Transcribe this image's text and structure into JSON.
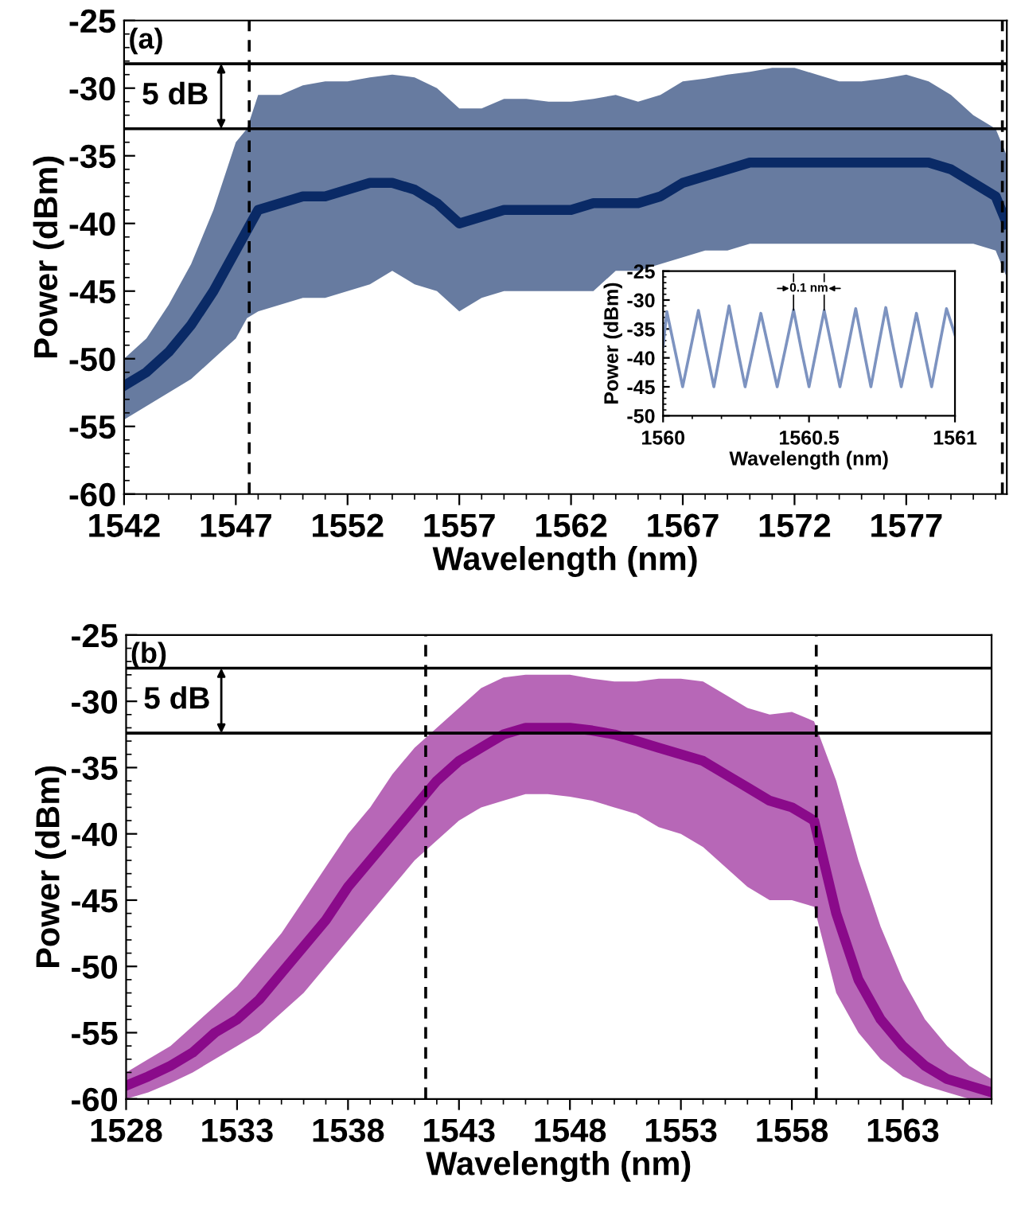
{
  "chart_data": [
    {
      "type": "line",
      "xlabel": "Wavelength (nm)",
      "ylabel": "Power (dBm)",
      "xlim": [
        1542,
        1581.5
      ],
      "ylim": [
        -60,
        -25
      ],
      "xticks": [
        1542,
        1547,
        1552,
        1557,
        1562,
        1567,
        1572,
        1577
      ],
      "yticks": [
        -25,
        -30,
        -35,
        -40,
        -45,
        -50,
        -55,
        -60
      ],
      "grid": false,
      "legend": false,
      "series": [
        {
          "color": "#0a2a66",
          "x": [
            1542,
            1543,
            1544,
            1545,
            1546,
            1547,
            1547.5,
            1548,
            1549,
            1550,
            1551,
            1552,
            1553,
            1554,
            1555,
            1556,
            1557,
            1558,
            1559,
            1560,
            1561,
            1562,
            1563,
            1564,
            1565,
            1566,
            1567,
            1568,
            1569,
            1570,
            1571,
            1572,
            1573,
            1574,
            1575,
            1576,
            1577,
            1578,
            1579,
            1580,
            1581,
            1581.5
          ],
          "values": [
            -52,
            -51,
            -49.5,
            -47.5,
            -45,
            -42,
            -40.5,
            -39,
            -38.5,
            -38,
            -38,
            -37.5,
            -37,
            -37,
            -37.5,
            -38.5,
            -40,
            -39.5,
            -39,
            -39,
            -39,
            -39,
            -38.5,
            -38.5,
            -38.5,
            -38,
            -37,
            -36.5,
            -36,
            -35.5,
            -35.5,
            -35.5,
            -35.5,
            -35.5,
            -35.5,
            -35.5,
            -35.5,
            -35.5,
            -36,
            -37,
            -38,
            -40
          ],
          "upper": [
            -50,
            -48.5,
            -46,
            -43,
            -39,
            -34,
            -33,
            -30.5,
            -30.5,
            -29.8,
            -29.5,
            -29.5,
            -29.2,
            -29,
            -29.2,
            -30,
            -31.5,
            -31.5,
            -30.8,
            -30.8,
            -31,
            -31,
            -30.8,
            -30.5,
            -31,
            -30.5,
            -29.5,
            -29.3,
            -29,
            -28.8,
            -28.5,
            -28.5,
            -29,
            -29.5,
            -29.5,
            -29.3,
            -29,
            -29.5,
            -30.5,
            -32,
            -33,
            -35
          ],
          "lower": [
            -54.5,
            -53.5,
            -52.5,
            -51.5,
            -50,
            -48.5,
            -47,
            -46.5,
            -46,
            -45.5,
            -45.5,
            -45,
            -44.5,
            -43.5,
            -44.5,
            -45,
            -46.5,
            -45.5,
            -45,
            -45,
            -45,
            -45,
            -45,
            -43.5,
            -43.5,
            -43,
            -42.5,
            -42,
            -42,
            -41.5,
            -41.5,
            -41.5,
            -41.5,
            -41.5,
            -41.5,
            -41.5,
            -41.5,
            -41.5,
            -41.5,
            -41.5,
            -42,
            -44
          ]
        }
      ],
      "ref_lines": [
        {
          "axis": "x",
          "value": 1547.6,
          "line_style": "dashed",
          "color": "#000000"
        },
        {
          "axis": "x",
          "value": 1581.3,
          "line_style": "dashed",
          "color": "#000000"
        },
        {
          "axis": "y",
          "value": -28.2,
          "line_style": "solid",
          "color": "#000000"
        },
        {
          "axis": "y",
          "value": -33,
          "line_style": "solid",
          "color": "#000000"
        }
      ],
      "annotations": [
        "(a)",
        "5 dB"
      ]
    },
    {
      "type": "line",
      "xlabel": "Wavelength (nm)",
      "ylabel": "Power (dBm)",
      "xlim": [
        1560,
        1561
      ],
      "ylim": [
        -50,
        -25
      ],
      "xticks": [
        1560,
        1560.5,
        1561
      ],
      "yticks": [
        -25,
        -30,
        -35,
        -40,
        -45,
        -50
      ],
      "grid": false,
      "legend": false,
      "series": [
        {
          "color": "#7d93c0",
          "x": [
            1560,
            1560.013,
            1560.04,
            1560.067,
            1560.094,
            1560.121,
            1560.147,
            1560.174,
            1560.2,
            1560.226,
            1560.253,
            1560.281,
            1560.308,
            1560.335,
            1560.363,
            1560.391,
            1560.419,
            1560.447,
            1560.473,
            1560.5,
            1560.526,
            1560.552,
            1560.579,
            1560.606,
            1560.633,
            1560.66,
            1560.686,
            1560.712,
            1560.737,
            1560.763,
            1560.789,
            1560.816,
            1560.842,
            1560.868,
            1560.894,
            1560.92,
            1560.945,
            1560.971,
            1561
          ],
          "values": [
            -38,
            -32,
            -38.5,
            -45,
            -38.4,
            -31.8,
            -38.4,
            -45,
            -38,
            -31,
            -38,
            -45,
            -38.7,
            -32.3,
            -38.7,
            -45,
            -38.4,
            -31.7,
            -38.4,
            -45,
            -38.4,
            -31.8,
            -38.4,
            -45,
            -38.3,
            -31.5,
            -38.3,
            -45,
            -38.2,
            -31.3,
            -38.2,
            -45,
            -38.7,
            -32.3,
            -38.7,
            -45,
            -38.3,
            -31.5,
            -36
          ]
        }
      ],
      "annotations": [
        "0.1 nm"
      ]
    },
    {
      "type": "line",
      "xlabel": "Wavelength (nm)",
      "ylabel": "Power (dBm)",
      "xlim": [
        1528,
        1567
      ],
      "ylim": [
        -60,
        -25
      ],
      "xticks": [
        1528,
        1533,
        1538,
        1543,
        1548,
        1553,
        1558,
        1563
      ],
      "yticks": [
        -25,
        -30,
        -35,
        -40,
        -45,
        -50,
        -55,
        -60
      ],
      "grid": false,
      "legend": false,
      "series": [
        {
          "color": "#8a0a8a",
          "x": [
            1528,
            1529,
            1530,
            1531,
            1532,
            1533,
            1534,
            1535,
            1536,
            1537,
            1538,
            1539,
            1540,
            1541,
            1542,
            1543,
            1544,
            1545,
            1546,
            1547,
            1548,
            1549,
            1550,
            1551,
            1552,
            1553,
            1554,
            1555,
            1556,
            1557,
            1558,
            1559,
            1560,
            1561,
            1562,
            1563,
            1564,
            1565,
            1566,
            1567
          ],
          "values": [
            -59,
            -58.3,
            -57.5,
            -56.5,
            -55,
            -54,
            -52.5,
            -50.5,
            -48.5,
            -46.5,
            -44,
            -42,
            -40,
            -38,
            -36,
            -34.5,
            -33.5,
            -32.5,
            -32,
            -32,
            -32,
            -32.2,
            -32.5,
            -33,
            -33.5,
            -34,
            -34.5,
            -35.5,
            -36.5,
            -37.5,
            -38,
            -39,
            -46,
            -51,
            -54,
            -56,
            -57.5,
            -58.5,
            -59,
            -59.5
          ],
          "upper": [
            -58,
            -57,
            -56,
            -54.5,
            -53,
            -51.5,
            -49.5,
            -47.5,
            -45,
            -42.5,
            -40,
            -38,
            -35.5,
            -33.5,
            -32,
            -30.5,
            -29,
            -28.2,
            -28,
            -28,
            -28,
            -28.3,
            -28.5,
            -28.5,
            -28.3,
            -28.3,
            -28.5,
            -29.5,
            -30.5,
            -31,
            -30.8,
            -31.5,
            -36,
            -42,
            -47,
            -51,
            -54,
            -56,
            -57.5,
            -58.5
          ],
          "lower": [
            -60,
            -59.5,
            -58.8,
            -58,
            -57,
            -56,
            -55,
            -53.5,
            -52,
            -50,
            -48,
            -46,
            -44,
            -42,
            -40.5,
            -39,
            -38,
            -37.5,
            -37,
            -37,
            -37.2,
            -37.5,
            -38,
            -38.5,
            -39.5,
            -40,
            -41,
            -42.5,
            -44,
            -45,
            -45,
            -45.5,
            -52,
            -55,
            -57,
            -58.3,
            -59,
            -59.5,
            -60,
            -60
          ]
        }
      ],
      "ref_lines": [
        {
          "axis": "x",
          "value": 1541.5,
          "line_style": "dashed",
          "color": "#000000"
        },
        {
          "axis": "x",
          "value": 1559.1,
          "line_style": "dashed",
          "color": "#000000"
        },
        {
          "axis": "y",
          "value": -27.5,
          "line_style": "solid",
          "color": "#000000"
        },
        {
          "axis": "y",
          "value": -32.4,
          "line_style": "solid",
          "color": "#000000"
        }
      ],
      "annotations": [
        "(b)",
        "5 dB"
      ]
    }
  ]
}
